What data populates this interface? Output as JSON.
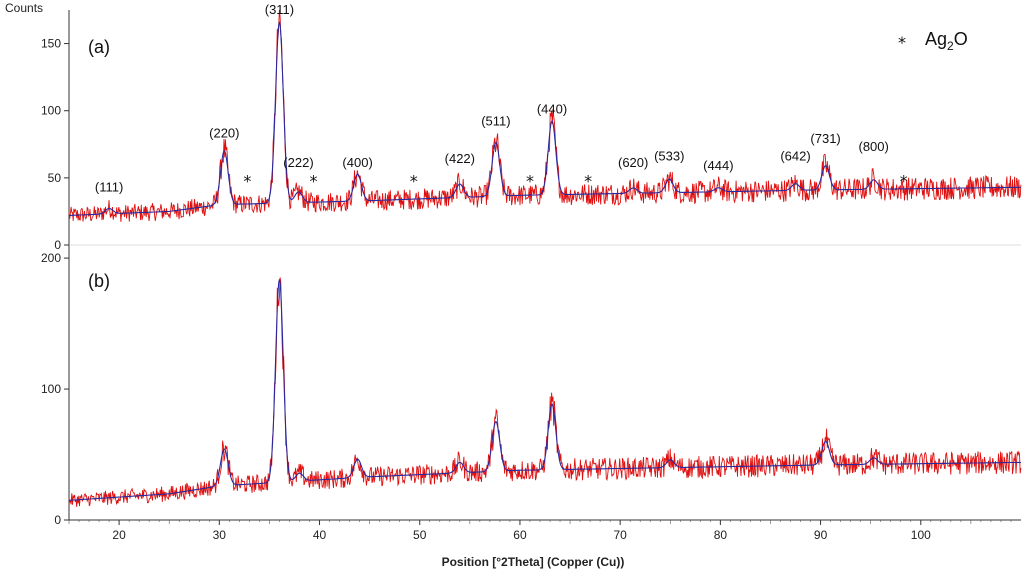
{
  "chart_data": {
    "type": "line",
    "xlabel": "Position [°2Theta] (Copper (Cu))",
    "ylabel": "Counts",
    "xlim": [
      15,
      110
    ],
    "x_ticks": [
      "20",
      "30",
      "40",
      "50",
      "60",
      "70",
      "80",
      "90",
      "100"
    ],
    "legend": {
      "marker": "*",
      "text_main": "Ag",
      "text_sub": "2",
      "text_tail": "O",
      "placement": "top-right"
    },
    "panels": [
      {
        "label": "(a)",
        "ylim": [
          0,
          175
        ],
        "y_ticks": [
          "0",
          "50",
          "100",
          "150"
        ],
        "baseline": [
          [
            15,
            22
          ],
          [
            25,
            25
          ],
          [
            30,
            30
          ],
          [
            45,
            33
          ],
          [
            60,
            37
          ],
          [
            75,
            39
          ],
          [
            90,
            41
          ],
          [
            110,
            43
          ]
        ],
        "peaks": [
          {
            "hkl": "(111)",
            "x": 19.0,
            "height": 4,
            "label_y": 40
          },
          {
            "hkl": "(220)",
            "x": 30.5,
            "height": 40,
            "label_y": 80
          },
          {
            "hkl": "(311)",
            "x": 36.0,
            "height": 135,
            "label_y": 172
          },
          {
            "hkl": "(222)",
            "x": 37.9,
            "height": 8,
            "label_y": 58
          },
          {
            "hkl": "(400)",
            "x": 43.8,
            "height": 20,
            "label_y": 58
          },
          {
            "hkl": "(422)",
            "x": 54.0,
            "height": 10,
            "label_y": 61
          },
          {
            "hkl": "(511)",
            "x": 57.6,
            "height": 40,
            "label_y": 89
          },
          {
            "hkl": "(440)",
            "x": 63.2,
            "height": 55,
            "label_y": 98
          },
          {
            "hkl": "(620)",
            "x": 71.3,
            "height": 4,
            "label_y": 58
          },
          {
            "hkl": "(533)",
            "x": 74.9,
            "height": 10,
            "label_y": 63
          },
          {
            "hkl": "(444)",
            "x": 79.8,
            "height": 3,
            "label_y": 56
          },
          {
            "hkl": "(642)",
            "x": 87.5,
            "height": 5,
            "label_y": 63
          },
          {
            "hkl": "(731)",
            "x": 90.5,
            "height": 18,
            "label_y": 76
          },
          {
            "hkl": "(800)",
            "x": 95.3,
            "height": 7,
            "label_y": 70
          }
        ],
        "ag2o_markers": [
          32.8,
          39.4,
          49.4,
          61.0,
          66.8,
          98.3
        ],
        "ag2o_marker_y": 48
      },
      {
        "label": "(b)",
        "ylim": [
          0,
          210
        ],
        "y_ticks": [
          "0",
          "100",
          "200"
        ],
        "baseline": [
          [
            15,
            15
          ],
          [
            25,
            20
          ],
          [
            30,
            26
          ],
          [
            45,
            33
          ],
          [
            60,
            38
          ],
          [
            75,
            40
          ],
          [
            90,
            42
          ],
          [
            110,
            44
          ]
        ],
        "peaks": [
          {
            "x": 30.5,
            "height": 28
          },
          {
            "x": 36.0,
            "height": 155
          },
          {
            "x": 38.0,
            "height": 6
          },
          {
            "x": 43.8,
            "height": 14
          },
          {
            "x": 54.0,
            "height": 8
          },
          {
            "x": 57.6,
            "height": 38
          },
          {
            "x": 63.2,
            "height": 50
          },
          {
            "x": 75.0,
            "height": 6
          },
          {
            "x": 90.5,
            "height": 18
          },
          {
            "x": 95.3,
            "height": 5
          }
        ]
      }
    ]
  }
}
